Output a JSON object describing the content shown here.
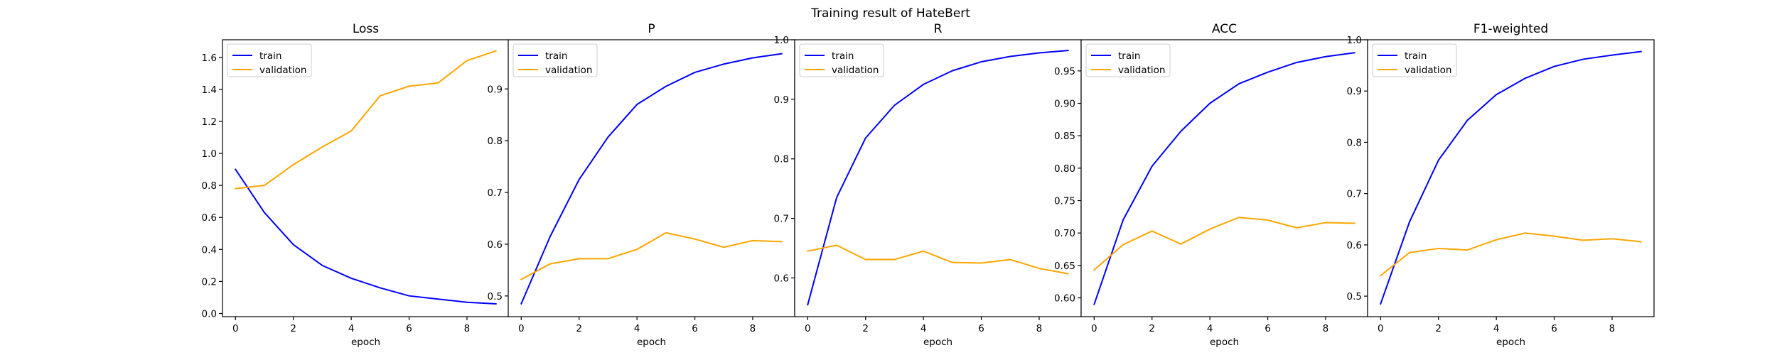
{
  "figure": {
    "title": "Training result of HateBert"
  },
  "chart_data": [
    {
      "type": "line",
      "title": "Loss",
      "xlabel": "epoch",
      "ylabel": "",
      "x": [
        0,
        1,
        2,
        3,
        4,
        5,
        6,
        7,
        8,
        9
      ],
      "xticks": [
        0,
        2,
        4,
        6,
        8
      ],
      "xlim": [
        -0.45,
        9.45
      ],
      "ylim": [
        -0.02,
        1.71
      ],
      "yticks": [
        0.0,
        0.2,
        0.4,
        0.6,
        0.8,
        1.0,
        1.2,
        1.4,
        1.6
      ],
      "ytick_labels": [
        "0.0",
        "0.2",
        "0.4",
        "0.6",
        "0.8",
        "1.0",
        "1.2",
        "1.4",
        "1.6"
      ],
      "legend": "top-left",
      "grid": false,
      "series": [
        {
          "name": "train",
          "color": "#0000ff",
          "values": [
            0.9,
            0.63,
            0.43,
            0.3,
            0.22,
            0.16,
            0.11,
            0.09,
            0.07,
            0.06
          ]
        },
        {
          "name": "validation",
          "color": "#ffa500",
          "values": [
            0.78,
            0.8,
            0.93,
            1.04,
            1.14,
            1.36,
            1.42,
            1.44,
            1.58,
            1.64
          ]
        }
      ]
    },
    {
      "type": "line",
      "title": "P",
      "xlabel": "epoch",
      "ylabel": "",
      "x": [
        0,
        1,
        2,
        3,
        4,
        5,
        6,
        7,
        8,
        9
      ],
      "xticks": [
        0,
        2,
        4,
        6,
        8
      ],
      "xlim": [
        -0.45,
        9.45
      ],
      "ylim": [
        0.46,
        0.995
      ],
      "yticks": [
        0.5,
        0.6,
        0.7,
        0.8,
        0.9
      ],
      "ytick_labels": [
        "0.5",
        "0.6",
        "0.7",
        "0.8",
        "0.9"
      ],
      "legend": "top-left",
      "grid": false,
      "series": [
        {
          "name": "train",
          "color": "#0000ff",
          "values": [
            0.485,
            0.615,
            0.725,
            0.807,
            0.87,
            0.905,
            0.932,
            0.948,
            0.96,
            0.968
          ]
        },
        {
          "name": "validation",
          "color": "#ffa500",
          "values": [
            0.532,
            0.562,
            0.572,
            0.572,
            0.59,
            0.622,
            0.61,
            0.594,
            0.607,
            0.605
          ]
        }
      ]
    },
    {
      "type": "line",
      "title": "R",
      "xlabel": "epoch",
      "ylabel": "",
      "x": [
        0,
        1,
        2,
        3,
        4,
        5,
        6,
        7,
        8,
        9
      ],
      "xticks": [
        0,
        2,
        4,
        6,
        8
      ],
      "xlim": [
        -0.45,
        9.45
      ],
      "ylim": [
        0.535,
        1.0
      ],
      "yticks": [
        0.6,
        0.7,
        0.8,
        0.9,
        1.0
      ],
      "ytick_labels": [
        "0.6",
        "0.7",
        "0.8",
        "0.9",
        "1.0"
      ],
      "legend": "top-left",
      "grid": false,
      "series": [
        {
          "name": "train",
          "color": "#0000ff",
          "values": [
            0.555,
            0.735,
            0.835,
            0.89,
            0.925,
            0.948,
            0.963,
            0.972,
            0.978,
            0.982
          ]
        },
        {
          "name": "validation",
          "color": "#ffa500",
          "values": [
            0.645,
            0.655,
            0.631,
            0.631,
            0.645,
            0.626,
            0.625,
            0.631,
            0.616,
            0.607
          ]
        }
      ]
    },
    {
      "type": "line",
      "title": "ACC",
      "xlabel": "epoch",
      "ylabel": "",
      "x": [
        0,
        1,
        2,
        3,
        4,
        5,
        6,
        7,
        8,
        9
      ],
      "xticks": [
        0,
        2,
        4,
        6,
        8
      ],
      "xlim": [
        -0.45,
        9.45
      ],
      "ylim": [
        0.571,
        0.998
      ],
      "yticks": [
        0.6,
        0.65,
        0.7,
        0.75,
        0.8,
        0.85,
        0.9,
        0.95
      ],
      "ytick_labels": [
        "0.60",
        "0.65",
        "0.70",
        "0.75",
        "0.80",
        "0.85",
        "0.90",
        "0.95"
      ],
      "legend": "top-left",
      "grid": false,
      "series": [
        {
          "name": "train",
          "color": "#0000ff",
          "values": [
            0.59,
            0.72,
            0.803,
            0.857,
            0.9,
            0.93,
            0.948,
            0.963,
            0.972,
            0.978
          ]
        },
        {
          "name": "validation",
          "color": "#ffa500",
          "values": [
            0.643,
            0.682,
            0.703,
            0.683,
            0.706,
            0.724,
            0.72,
            0.708,
            0.716,
            0.715
          ]
        }
      ]
    },
    {
      "type": "line",
      "title": "F1-weighted",
      "xlabel": "epoch",
      "ylabel": "",
      "x": [
        0,
        1,
        2,
        3,
        4,
        5,
        6,
        7,
        8,
        9
      ],
      "xticks": [
        0,
        2,
        4,
        6,
        8
      ],
      "xlim": [
        -0.45,
        9.45
      ],
      "ylim": [
        0.46,
        1.0
      ],
      "yticks": [
        0.5,
        0.6,
        0.7,
        0.8,
        0.9,
        1.0
      ],
      "ytick_labels": [
        "0.5",
        "0.6",
        "0.7",
        "0.8",
        "0.9",
        "1.0"
      ],
      "legend": "top-left",
      "grid": false,
      "series": [
        {
          "name": "train",
          "color": "#0000ff",
          "values": [
            0.485,
            0.645,
            0.765,
            0.843,
            0.893,
            0.925,
            0.948,
            0.962,
            0.97,
            0.977
          ]
        },
        {
          "name": "validation",
          "color": "#ffa500",
          "values": [
            0.54,
            0.585,
            0.593,
            0.59,
            0.61,
            0.623,
            0.617,
            0.609,
            0.612,
            0.606
          ]
        }
      ]
    }
  ]
}
